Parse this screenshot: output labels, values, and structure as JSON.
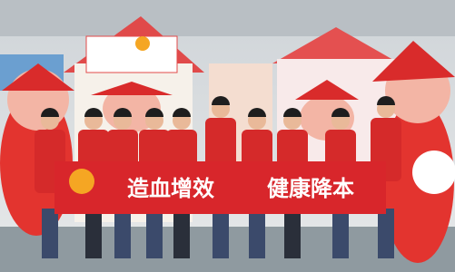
{
  "banner": {
    "left": "造血增效",
    "right": "健康降本"
  }
}
